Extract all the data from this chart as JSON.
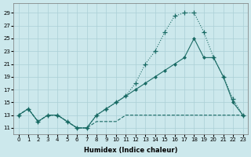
{
  "xlabel": "Humidex (Indice chaleur)",
  "bg_color": "#cce8ec",
  "grid_color": "#aacfd6",
  "line_color": "#1a6b65",
  "xlim": [
    -0.5,
    23.5
  ],
  "ylim": [
    10.0,
    30.5
  ],
  "yticks": [
    11,
    13,
    15,
    17,
    19,
    21,
    23,
    25,
    27,
    29
  ],
  "xticks": [
    0,
    1,
    2,
    3,
    4,
    5,
    6,
    7,
    8,
    9,
    10,
    11,
    12,
    13,
    14,
    15,
    16,
    17,
    18,
    19,
    20,
    21,
    22,
    23
  ],
  "line1_x": [
    0,
    1,
    2,
    3,
    4,
    5,
    6,
    7,
    8,
    9,
    10,
    11,
    12,
    13,
    14,
    15,
    16,
    17,
    18,
    19,
    20,
    21,
    22,
    23
  ],
  "line1_y": [
    13,
    14,
    12,
    13,
    13,
    12,
    11,
    11,
    13,
    14,
    15,
    16,
    18,
    21,
    23,
    26,
    28.5,
    29,
    29,
    26,
    22,
    19,
    15.5,
    13
  ],
  "line2_x": [
    0,
    1,
    2,
    3,
    4,
    5,
    6,
    7,
    8,
    9,
    10,
    11,
    12,
    13,
    14,
    15,
    16,
    17,
    18,
    19,
    20,
    21,
    22,
    23
  ],
  "line2_y": [
    13,
    14,
    12,
    13,
    13,
    12,
    11,
    11,
    13,
    14,
    15,
    16,
    17,
    18,
    19,
    20,
    21,
    22,
    25,
    22,
    22,
    19,
    15,
    13
  ],
  "line3_x": [
    0,
    1,
    2,
    3,
    4,
    5,
    6,
    7,
    8,
    9,
    10,
    11,
    12,
    13,
    14,
    15,
    16,
    17,
    18,
    19,
    20,
    21,
    22,
    23
  ],
  "line3_y": [
    13,
    14,
    12,
    13,
    13,
    12,
    11,
    11,
    12,
    12,
    12,
    13,
    13,
    13,
    13,
    13,
    13,
    13,
    13,
    13,
    13,
    13,
    13,
    13
  ]
}
